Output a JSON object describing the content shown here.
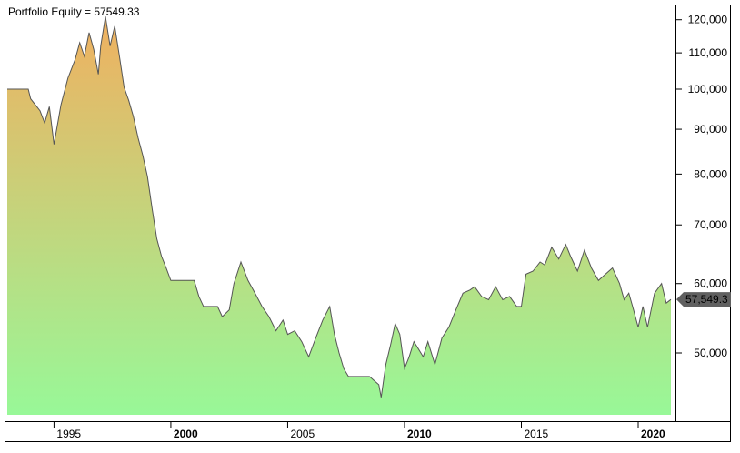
{
  "chart_data": {
    "type": "area",
    "title": "Portfolio Equity = 57549.33",
    "xlabel": "",
    "ylabel": "",
    "y_scale": "log",
    "ylim": [
      42500,
      124000
    ],
    "xlim": [
      1993.0,
      2021.4
    ],
    "grid": false,
    "x_ticks": [
      {
        "label": "1995",
        "value": 1995,
        "bold": false
      },
      {
        "label": "2000",
        "value": 2000,
        "bold": true
      },
      {
        "label": "2005",
        "value": 2005,
        "bold": false
      },
      {
        "label": "2010",
        "value": 2010,
        "bold": true
      },
      {
        "label": "2015",
        "value": 2015,
        "bold": false
      },
      {
        "label": "2020",
        "value": 2020,
        "bold": true
      }
    ],
    "y_ticks": [
      {
        "label": "50,000",
        "value": 50000
      },
      {
        "label": "60,000",
        "value": 60000
      },
      {
        "label": "70,000",
        "value": 70000
      },
      {
        "label": "80,000",
        "value": 80000
      },
      {
        "label": "90,000",
        "value": 90000
      },
      {
        "label": "100,000",
        "value": 100000
      },
      {
        "label": "110,000",
        "value": 110000
      },
      {
        "label": "120,000",
        "value": 120000
      }
    ],
    "last_value_label": "57,549.3",
    "colors": {
      "top": "#f0b060",
      "bottom": "#98f898",
      "line": "#555555",
      "marker": "#606060"
    },
    "series": [
      {
        "x": [
          1993.0,
          1993.9,
          1994.0,
          1994.4,
          1994.6,
          1994.8,
          1995.0,
          1995.3,
          1995.6,
          1995.9,
          1996.1,
          1996.3,
          1996.5,
          1996.7,
          1996.9,
          1997.0,
          1997.2,
          1997.4,
          1997.6,
          1997.8,
          1998.0,
          1998.2,
          1998.4,
          1998.6,
          1998.8,
          1999.0,
          1999.2,
          1999.4,
          1999.6,
          1999.8,
          2000.0,
          2000.5,
          2001.0,
          2001.2,
          2001.4,
          2002.0,
          2002.2,
          2002.5,
          2002.7,
          2003.0,
          2003.3,
          2003.6,
          2003.9,
          2004.2,
          2004.5,
          2004.8,
          2005.0,
          2005.3,
          2005.6,
          2005.9,
          2006.2,
          2006.5,
          2006.8,
          2007.0,
          2007.2,
          2007.4,
          2007.6,
          2007.9,
          2008.0,
          2008.2,
          2008.5,
          2008.9,
          2009.0,
          2009.2,
          2009.4,
          2009.6,
          2009.8,
          2010.0,
          2010.2,
          2010.4,
          2010.6,
          2010.8,
          2011.0,
          2011.3,
          2011.6,
          2011.9,
          2012.2,
          2012.5,
          2012.8,
          2013.0,
          2013.3,
          2013.6,
          2013.9,
          2014.2,
          2014.5,
          2014.8,
          2015.0,
          2015.2,
          2015.5,
          2015.8,
          2016.0,
          2016.3,
          2016.6,
          2016.9,
          2017.1,
          2017.4,
          2017.7,
          2018.0,
          2018.3,
          2018.6,
          2018.9,
          2019.2,
          2019.4,
          2019.6,
          2019.8,
          2020.0,
          2020.2,
          2020.4,
          2020.7,
          2021.0,
          2021.2,
          2021.4
        ],
        "y": [
          100000,
          100000,
          97500,
          94500,
          91500,
          95500,
          86500,
          96000,
          103000,
          108000,
          113000,
          109000,
          116000,
          111000,
          104000,
          112000,
          121000,
          112000,
          118000,
          109000,
          100500,
          97000,
          93000,
          88000,
          84000,
          79500,
          73000,
          67500,
          64500,
          62500,
          60500,
          60500,
          60500,
          58000,
          56500,
          56500,
          55000,
          56000,
          60000,
          63500,
          60500,
          58500,
          56500,
          55000,
          53000,
          54500,
          52500,
          53000,
          51500,
          49500,
          52000,
          54500,
          56500,
          52500,
          50000,
          48000,
          47000,
          47000,
          47000,
          47000,
          47000,
          46000,
          44500,
          48500,
          51000,
          54000,
          52500,
          48000,
          49500,
          51500,
          50500,
          49500,
          51500,
          48500,
          52000,
          53500,
          56000,
          58500,
          59000,
          59500,
          58000,
          57500,
          59500,
          57500,
          58000,
          56500,
          56500,
          61500,
          62000,
          63500,
          63000,
          66000,
          64000,
          66500,
          64500,
          62000,
          65500,
          62500,
          60500,
          61500,
          62500,
          60000,
          57500,
          58500,
          56000,
          53500,
          56500,
          53500,
          58500,
          60000,
          57000,
          57549
        ]
      }
    ]
  }
}
